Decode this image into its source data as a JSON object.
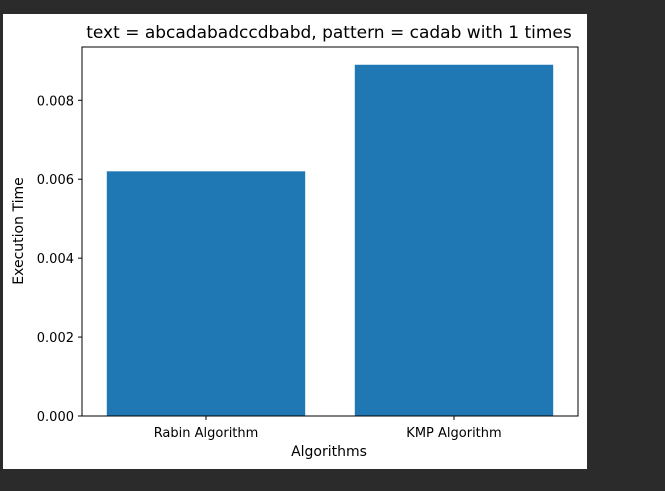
{
  "colors": {
    "background": "#2b2b2b",
    "figure": "#ffffff",
    "bar": "#1f77b4",
    "axis": "#000000"
  },
  "chart_data": {
    "type": "bar",
    "title": "text = abcadabadccdbabd, pattern = cadab  with 1 times",
    "xlabel": "Algorithms",
    "ylabel": "Execution Time",
    "categories": [
      "Rabin Algorithm",
      "KMP Algorithm"
    ],
    "values": [
      0.0062,
      0.0089
    ],
    "ylim": [
      0,
      0.00935
    ],
    "yticks": [
      0.0,
      0.002,
      0.004,
      0.006,
      0.008
    ],
    "ytick_labels": [
      "0.000",
      "0.002",
      "0.004",
      "0.006",
      "0.008"
    ],
    "grid": false,
    "legend": "none"
  }
}
